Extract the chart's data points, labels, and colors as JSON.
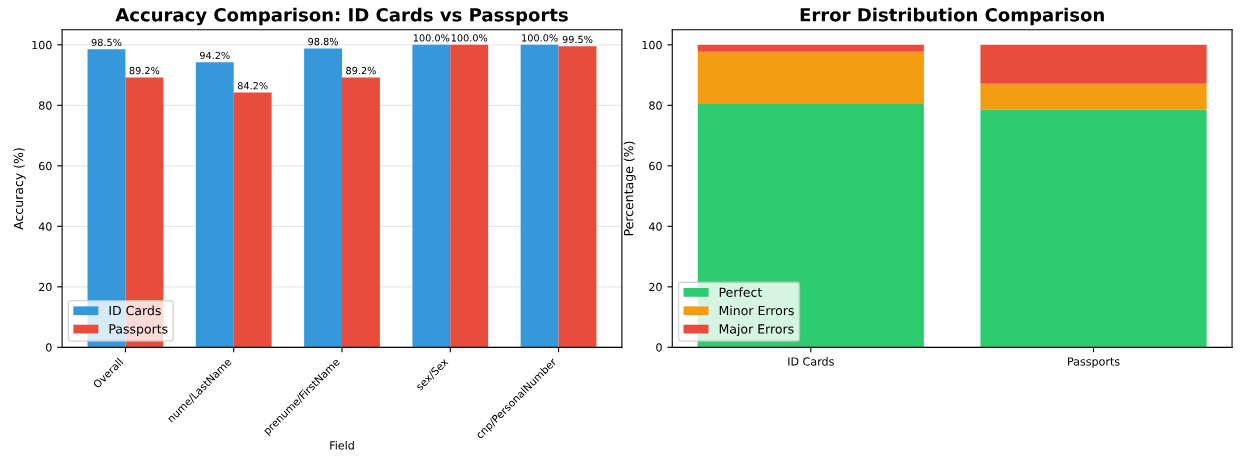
{
  "chart_data": [
    {
      "type": "bar",
      "title": "Accuracy Comparison: ID Cards vs Passports",
      "xlabel": "Field",
      "ylabel": "Accuracy (%)",
      "categories": [
        "Overall",
        "nume/LastName",
        "prenume/FirstName",
        "sex/Sex",
        "cnp/PersonalNumber"
      ],
      "series": [
        {
          "name": "ID Cards",
          "color": "#3498db",
          "values": [
            98.5,
            94.2,
            98.8,
            100.0,
            100.0
          ],
          "value_labels": [
            "98.5%",
            "94.2%",
            "98.8%",
            "100.0%",
            "100.0%"
          ]
        },
        {
          "name": "Passports",
          "color": "#e74c3c",
          "values": [
            89.2,
            84.2,
            89.2,
            100.0,
            99.5
          ],
          "value_labels": [
            "89.2%",
            "84.2%",
            "89.2%",
            "100.0%",
            "99.5%"
          ]
        }
      ],
      "ylim": [
        0,
        105
      ],
      "yticks": [
        0,
        20,
        40,
        60,
        80,
        100
      ],
      "grid": "y",
      "legend": "bottom left"
    },
    {
      "type": "bar",
      "title": "Error Distribution Comparison",
      "ylabel": "Percentage (%)",
      "stacked": true,
      "categories": [
        "ID Cards",
        "Passports"
      ],
      "series": [
        {
          "name": "Perfect",
          "color": "#2ecc71",
          "values": [
            80.4,
            78.6
          ]
        },
        {
          "name": "Minor Errors",
          "color": "#f39c12",
          "values": [
            17.3,
            8.5
          ]
        },
        {
          "name": "Major Errors",
          "color": "#e74c3c",
          "values": [
            2.3,
            12.9
          ]
        }
      ],
      "ylim": [
        0,
        105
      ],
      "yticks": [
        0,
        20,
        40,
        60,
        80,
        100
      ],
      "legend": "bottom left"
    }
  ]
}
